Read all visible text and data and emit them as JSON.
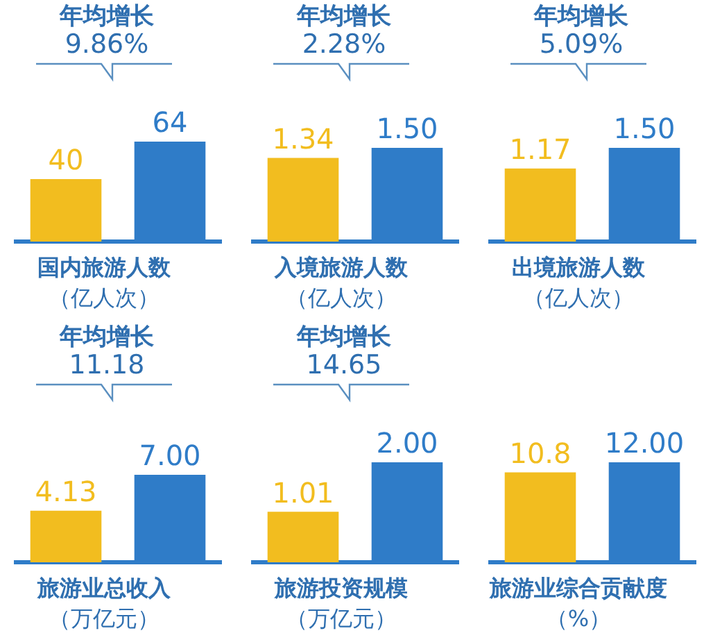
{
  "chart_data": [
    {
      "type": "bar",
      "title": "年均增长",
      "subtitle": "9.86%",
      "xlabel": "国内旅游人数",
      "annotations": [
        "（亿人次）"
      ],
      "categories": [
        null,
        null
      ],
      "values": [
        40,
        64
      ],
      "colors": [
        "#f2bd1f",
        "#2f7cc8"
      ],
      "value_labels": [
        "40",
        "64"
      ]
    },
    {
      "type": "bar",
      "title": "年均增长",
      "subtitle": "2.28%",
      "xlabel": "入境旅游人数",
      "annotations": [
        "（亿人次）"
      ],
      "categories": [
        null,
        null
      ],
      "values": [
        1.34,
        1.5
      ],
      "colors": [
        "#f2bd1f",
        "#2f7cc8"
      ],
      "value_labels": [
        "1.34",
        "1.50"
      ]
    },
    {
      "type": "bar",
      "title": "年均增长",
      "subtitle": "5.09%",
      "xlabel": "出境旅游人数",
      "annotations": [
        "（亿人次）"
      ],
      "categories": [
        null,
        null
      ],
      "values": [
        1.17,
        1.5
      ],
      "colors": [
        "#f2bd1f",
        "#2f7cc8"
      ],
      "value_labels": [
        "1.17",
        "1.50"
      ]
    },
    {
      "type": "bar",
      "title": "年均增长",
      "subtitle": "11.18",
      "xlabel": "旅游业总收入",
      "annotations": [
        "（万亿元）"
      ],
      "categories": [
        null,
        null
      ],
      "values": [
        4.13,
        7
      ],
      "colors": [
        "#f2bd1f",
        "#2f7cc8"
      ],
      "value_labels": [
        "4.13",
        "7.00"
      ]
    },
    {
      "type": "bar",
      "title": "年均增长",
      "subtitle": "14.65",
      "xlabel": "旅游投资规模",
      "annotations": [
        "（万亿元）"
      ],
      "categories": [
        null,
        null
      ],
      "values": [
        1.01,
        2
      ],
      "colors": [
        "#f2bd1f",
        "#2f7cc8"
      ],
      "value_labels": [
        "1.01",
        "2.00"
      ]
    },
    {
      "type": "bar",
      "xlabel": "旅游业综合贡献度",
      "annotations": [
        "（%）"
      ],
      "categories": [
        null,
        null
      ],
      "values": [
        10.8,
        12
      ],
      "colors": [
        "#f2bd1f",
        "#2f7cc8"
      ],
      "value_labels": [
        "10.8",
        "12.00"
      ]
    }
  ]
}
